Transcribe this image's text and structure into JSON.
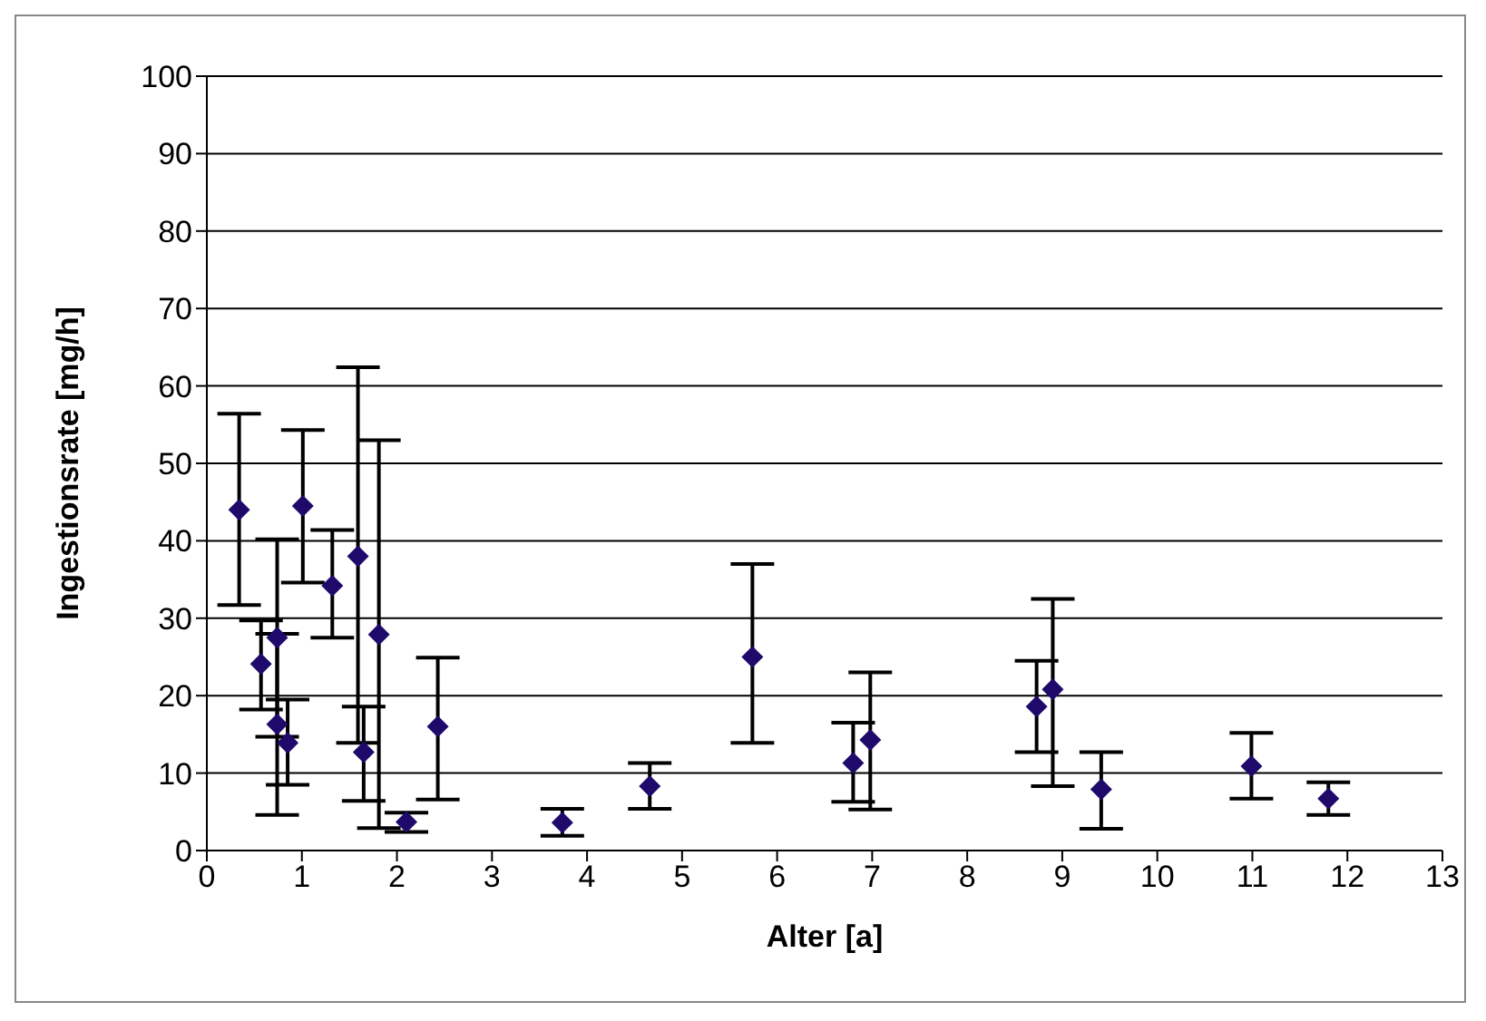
{
  "chart_data": {
    "type": "scatter",
    "xlabel": "Alter [a]",
    "ylabel": "Ingestionsrate [mg/h]",
    "x": [
      0.34,
      0.57,
      0.74,
      0.74,
      0.85,
      1.01,
      1.32,
      1.59,
      1.65,
      1.81,
      2.1,
      2.43,
      3.74,
      4.66,
      5.74,
      6.8,
      6.98,
      8.73,
      8.9,
      9.41,
      10.99,
      11.8
    ],
    "series": [
      {
        "color": "#1f0a6b",
        "values": [
          44,
          24.1,
          27.5,
          16.3,
          13.9,
          44.5,
          34.2,
          38,
          12.7,
          27.9,
          3.7,
          16,
          3.6,
          8.3,
          25,
          11.3,
          14.3,
          18.6,
          20.8,
          7.9,
          10.9,
          6.7
        ],
        "errors": [
          [
            31.7,
            56.4
          ],
          [
            18.2,
            29.7
          ],
          [
            4.6,
            40.2
          ],
          [
            14.7,
            28
          ],
          [
            8.5,
            19.5
          ],
          [
            34.6,
            54.3
          ],
          [
            27.5,
            41.4
          ],
          [
            13.9,
            62.4
          ],
          [
            6.4,
            18.6
          ],
          [
            2.9,
            53
          ],
          [
            2.4,
            4.9
          ],
          [
            6.6,
            24.9
          ],
          [
            1.9,
            5.4
          ],
          [
            5.4,
            11.3
          ],
          [
            13.9,
            37
          ],
          [
            6.3,
            16.5
          ],
          [
            5.3,
            23
          ],
          [
            12.7,
            24.5
          ],
          [
            8.3,
            32.5
          ],
          [
            2.8,
            12.7
          ],
          [
            6.7,
            15.2
          ],
          [
            4.6,
            8.8
          ]
        ]
      }
    ],
    "xlim": [
      0,
      13
    ],
    "xticks": [
      0,
      1,
      2,
      3,
      4,
      5,
      6,
      7,
      8,
      9,
      10,
      11,
      12,
      13
    ],
    "ylim": [
      0,
      100
    ],
    "yticks": [
      0,
      10,
      20,
      30,
      40,
      50,
      60,
      70,
      80,
      90,
      100
    ],
    "grid": "y",
    "marker": "diamond"
  }
}
